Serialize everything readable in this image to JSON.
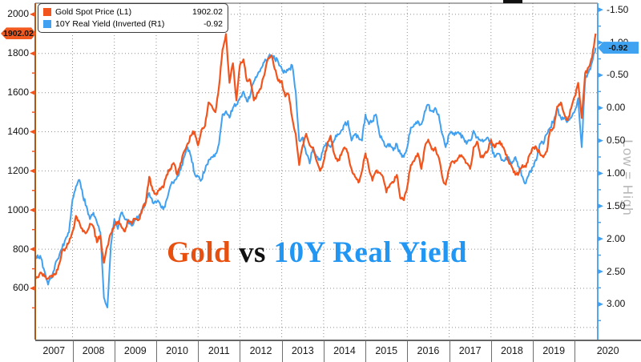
{
  "legend": {
    "items": [
      {
        "label": "Gold Spot Price (L1)",
        "value": "1902.02"
      },
      {
        "label": "10Y Real Yield (Inverted (R1)",
        "value": "-0.92"
      }
    ]
  },
  "title_parts": {
    "gold": "Gold",
    "vs": " vs ",
    "yield": "10Y Real Yield"
  },
  "badges": {
    "gold": "1902.02",
    "yield": "-0.92"
  },
  "watermark": "Low = High",
  "colors": {
    "gold": "#f1541d",
    "yield": "#41a1f0",
    "gold_axis_line": "#b05515",
    "yield_axis_line": "#56a8ec",
    "title_gold": "#e8500f",
    "title_vs": "#111111",
    "title_yield": "#2196f3",
    "grid": "#8f8f8f",
    "badge_gold_bg": "#f2591e",
    "badge_yield_bg": "#3fa3f2"
  },
  "chart_data": {
    "type": "line",
    "title": "Gold vs 10Y Real Yield",
    "grid": true,
    "legend_position": "top-left",
    "x_axis": {
      "unit": "year",
      "years": [
        "2007",
        "2008",
        "2009",
        "2010",
        "2011",
        "2012",
        "2013",
        "2014",
        "2015",
        "2016",
        "2017",
        "2018",
        "2019",
        "2020"
      ],
      "x_at_plot_left": 2007.11,
      "x_at_plot_right": 2020.55
    },
    "left_axis": {
      "label": "Gold Spot Price",
      "ticks": [
        2000,
        1800,
        1600,
        1400,
        1200,
        1000,
        800,
        600
      ],
      "grid_values": [
        2000,
        1800,
        1600,
        1400,
        1200,
        1000,
        800,
        600,
        400
      ],
      "minor_ticks": [
        1900,
        1700,
        1500,
        1300,
        1100,
        900,
        700,
        500
      ],
      "top_value": 2057,
      "bottom_value": 338,
      "last_value": 1902.02
    },
    "right_axis": {
      "label": "10Y Real Yield (Inverted)",
      "note": "Low = High",
      "inverted": true,
      "ticks": [
        -1.5,
        -1.0,
        -0.5,
        0.0,
        0.5,
        1.0,
        1.5,
        2.0,
        2.5,
        3.0
      ],
      "minor_ticks": [
        -1.25,
        -0.75,
        -0.25,
        0.25,
        0.75,
        1.25,
        1.75,
        2.25,
        2.75,
        3.25
      ],
      "top_value": -1.6,
      "bottom_value": 3.54,
      "last_value": -0.92
    },
    "series": [
      {
        "name": "Gold Spot Price (L1)",
        "axis": "left",
        "color": "#f1541d",
        "x_start": 2007.0,
        "x_step_years": 0.0833333,
        "values": [
          640,
          665,
          655,
          680,
          660,
          650,
          665,
          670,
          715,
          790,
          805,
          835,
          890,
          970,
          935,
          890,
          885,
          930,
          915,
          835,
          870,
          730,
          815,
          880,
          920,
          940,
          915,
          890,
          950,
          930,
          955,
          950,
          1000,
          1040,
          1170,
          1100,
          1080,
          1110,
          1115,
          1180,
          1210,
          1240,
          1180,
          1240,
          1300,
          1340,
          1380,
          1400,
          1330,
          1410,
          1430,
          1550,
          1530,
          1500,
          1630,
          1820,
          1900,
          1650,
          1750,
          1560,
          1740,
          1770,
          1660,
          1660,
          1560,
          1600,
          1620,
          1690,
          1770,
          1790,
          1720,
          1660,
          1660,
          1580,
          1590,
          1470,
          1390,
          1230,
          1330,
          1390,
          1330,
          1320,
          1250,
          1200,
          1250,
          1330,
          1380,
          1290,
          1250,
          1280,
          1320,
          1290,
          1210,
          1170,
          1140,
          1200,
          1290,
          1210,
          1150,
          1200,
          1190,
          1170,
          1090,
          1130,
          1140,
          1180,
          1060,
          1050,
          1120,
          1230,
          1250,
          1290,
          1210,
          1320,
          1360,
          1310,
          1320,
          1270,
          1170,
          1130,
          1210,
          1250,
          1250,
          1280,
          1270,
          1240,
          1210,
          1320,
          1350,
          1270,
          1280,
          1300,
          1360,
          1320,
          1340,
          1340,
          1300,
          1250,
          1220,
          1180,
          1190,
          1230,
          1220,
          1280,
          1320,
          1320,
          1290,
          1270,
          1300,
          1410,
          1420,
          1530,
          1550,
          1490,
          1460,
          1520,
          1580,
          1650,
          1470,
          1700,
          1730,
          1780,
          1902
        ]
      },
      {
        "name": "10Y Real Yield (Inverted (R1)",
        "axis": "right",
        "color": "#41a1f0",
        "x_start": 2007.0,
        "x_step_years": 0.0833333,
        "values": [
          2.4,
          2.35,
          2.25,
          2.3,
          2.5,
          2.7,
          2.6,
          2.4,
          2.3,
          2.15,
          2.0,
          1.9,
          1.4,
          1.2,
          1.1,
          1.35,
          1.5,
          1.7,
          1.6,
          1.75,
          1.9,
          2.9,
          3.05,
          2.1,
          1.7,
          1.85,
          1.6,
          1.7,
          1.75,
          1.8,
          1.7,
          1.65,
          1.55,
          1.45,
          1.3,
          1.45,
          1.45,
          1.45,
          1.55,
          1.4,
          1.2,
          1.15,
          1.05,
          0.95,
          0.75,
          0.6,
          0.75,
          1.0,
          1.05,
          1.1,
          0.95,
          0.8,
          0.75,
          0.7,
          0.55,
          0.1,
          0.05,
          0.15,
          0.0,
          -0.05,
          -0.15,
          -0.25,
          -0.1,
          -0.2,
          -0.4,
          -0.5,
          -0.6,
          -0.7,
          -0.75,
          -0.8,
          -0.75,
          -0.7,
          -0.6,
          -0.55,
          -0.6,
          -0.65,
          -0.25,
          0.5,
          0.45,
          0.7,
          0.85,
          0.6,
          0.75,
          0.8,
          0.6,
          0.55,
          0.6,
          0.5,
          0.4,
          0.35,
          0.25,
          0.2,
          0.5,
          0.4,
          0.45,
          0.5,
          0.1,
          0.25,
          0.2,
          0.1,
          0.4,
          0.5,
          0.6,
          0.55,
          0.65,
          0.55,
          0.7,
          0.75,
          0.6,
          0.3,
          0.25,
          0.2,
          0.25,
          0.05,
          -0.05,
          0.05,
          0.0,
          0.1,
          0.4,
          0.6,
          0.4,
          0.4,
          0.4,
          0.4,
          0.45,
          0.55,
          0.5,
          0.35,
          0.45,
          0.5,
          0.5,
          0.45,
          0.55,
          0.75,
          0.7,
          0.8,
          0.8,
          0.75,
          0.85,
          0.75,
          0.9,
          1.05,
          1.15,
          0.98,
          0.9,
          0.8,
          0.55,
          0.55,
          0.4,
          0.3,
          0.2,
          0.0,
          0.15,
          0.15,
          0.2,
          0.15,
          0.05,
          -0.15,
          0.6,
          -0.45,
          -0.55,
          -0.7,
          -0.92
        ]
      }
    ]
  }
}
